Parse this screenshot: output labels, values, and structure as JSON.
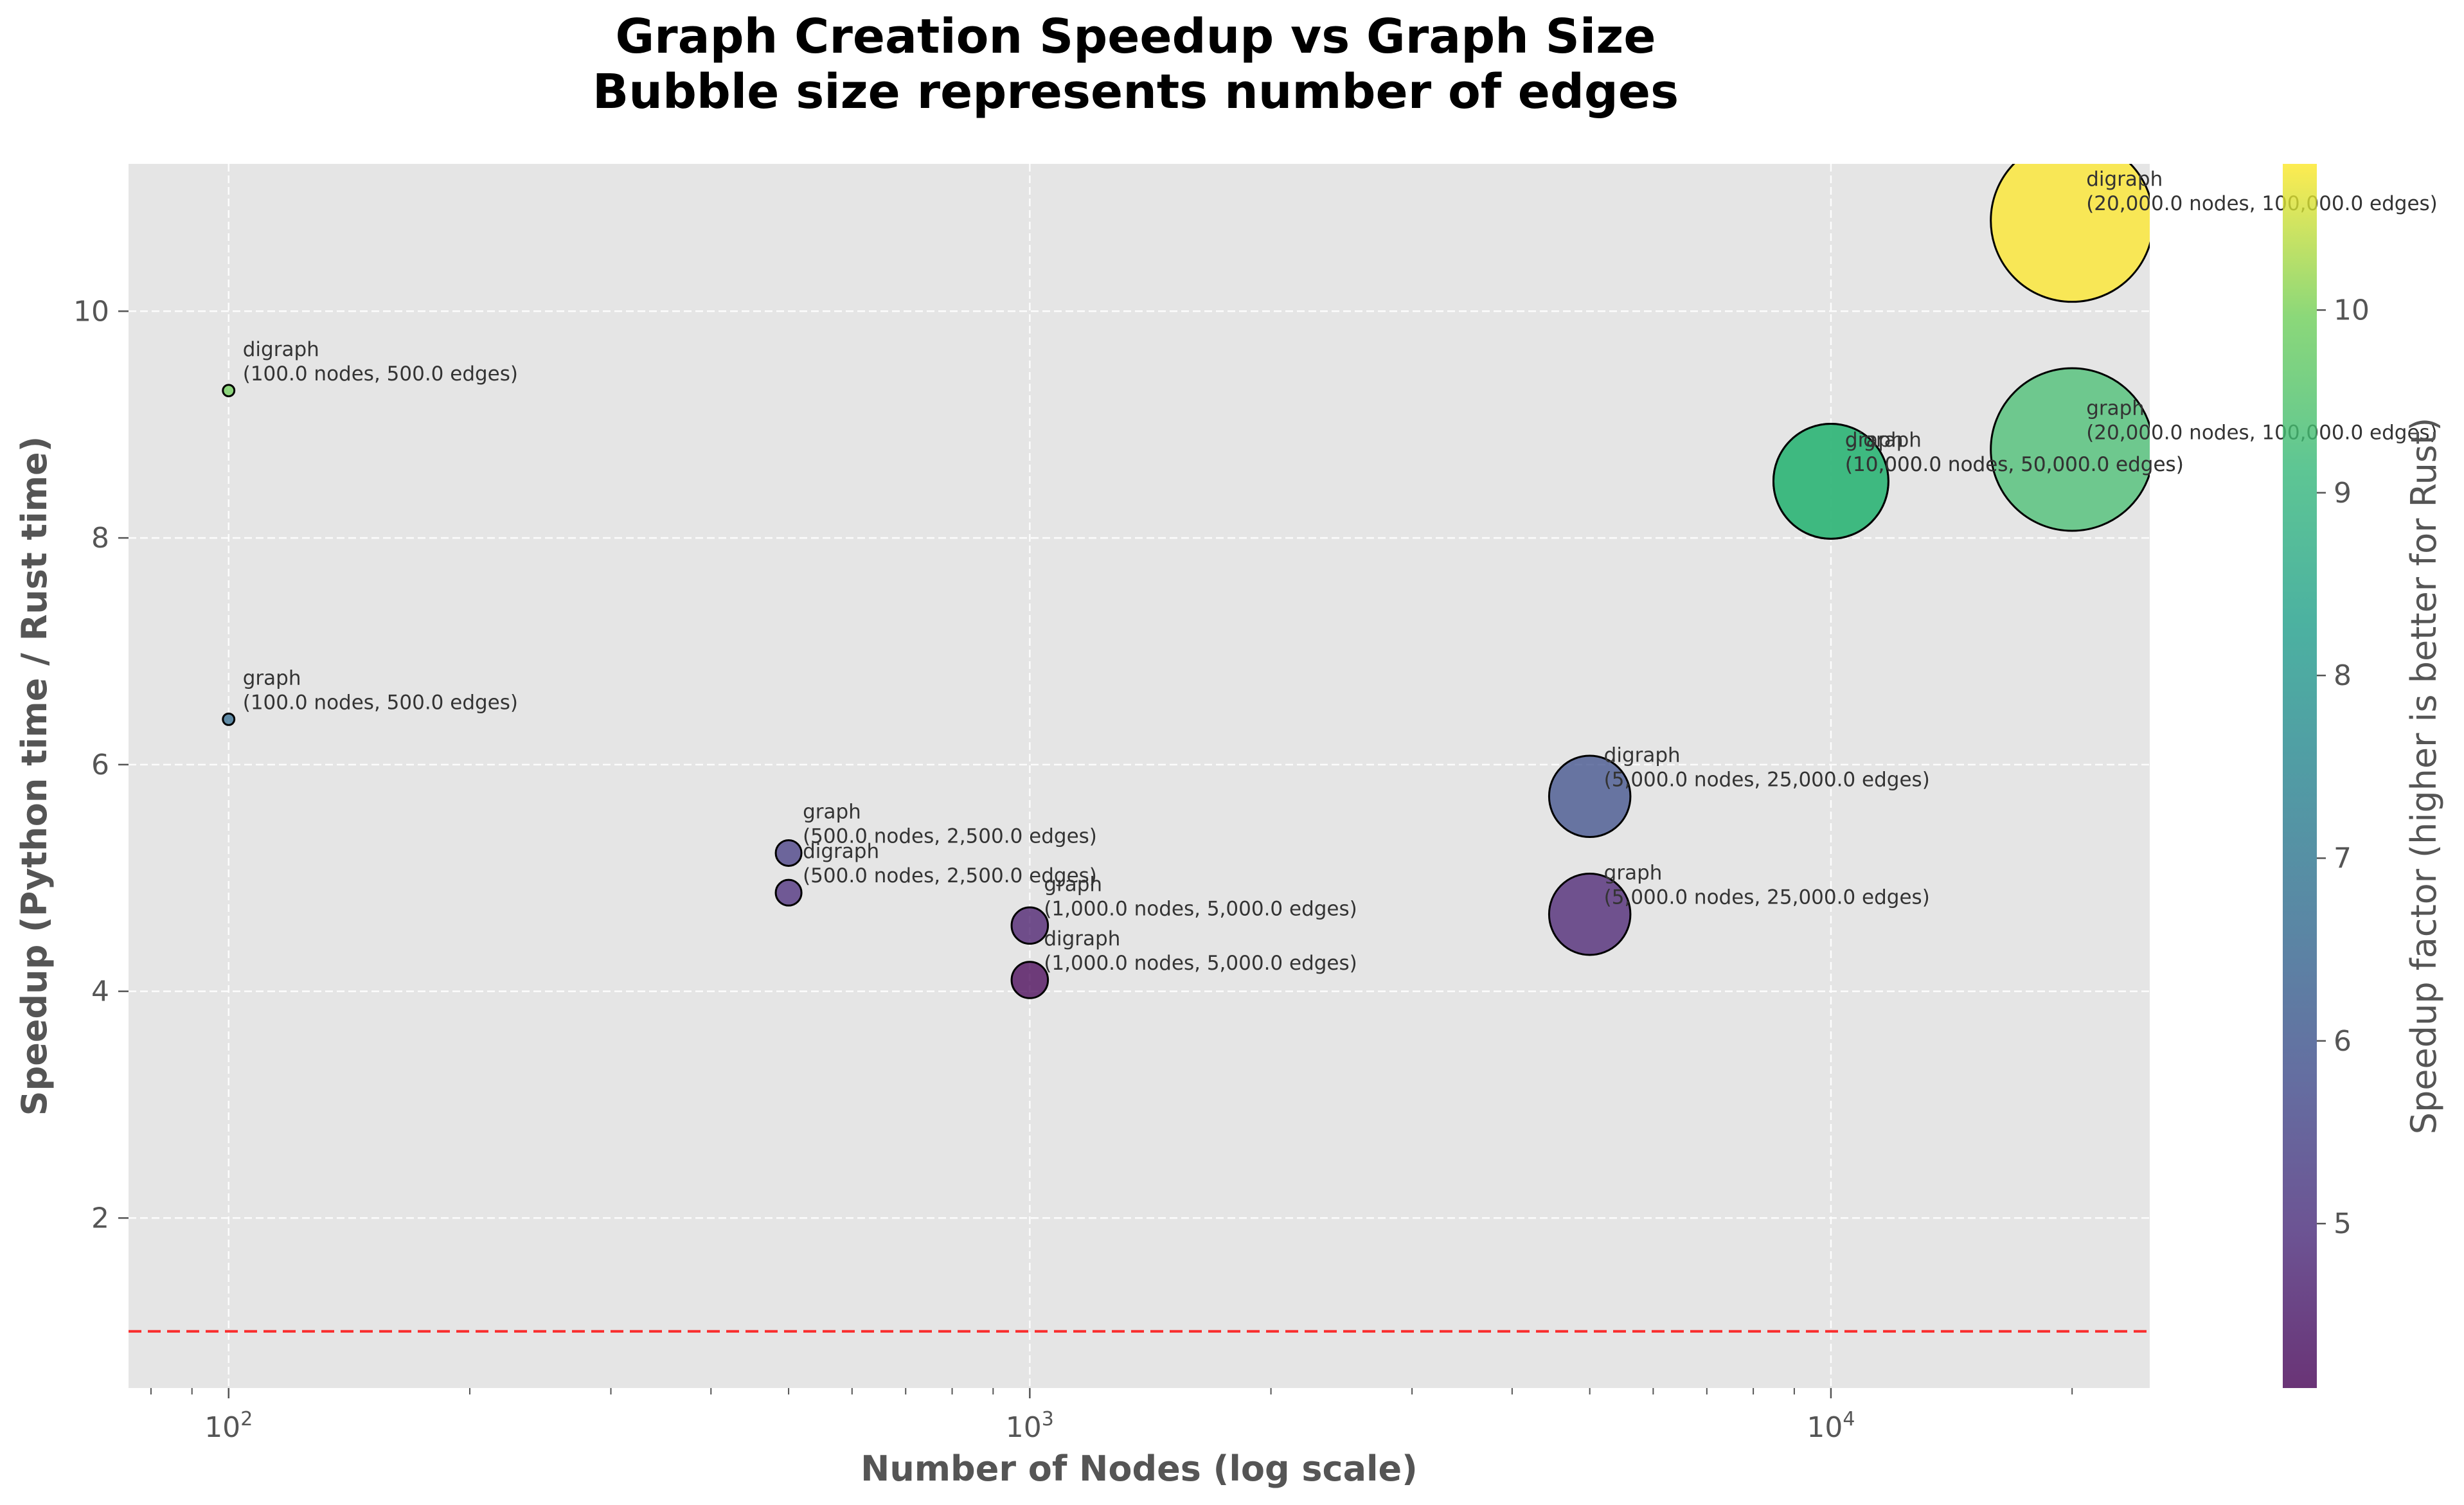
{
  "chart_data": {
    "type": "scatter",
    "title": "Graph Creation Speedup vs Graph Size",
    "subtitle": "Bubble size represents number of edges",
    "xlabel": "Number of Nodes (log scale)",
    "ylabel": "Speedup (Python time / Rust time)",
    "x_scale": "log",
    "xlim": [
      75,
      25000
    ],
    "ylim": [
      0.5,
      11.3
    ],
    "x_ticks": [
      {
        "value": 100,
        "base": "10",
        "exp": "2"
      },
      {
        "value": 1000,
        "base": "10",
        "exp": "3"
      },
      {
        "value": 10000,
        "base": "10",
        "exp": "4"
      }
    ],
    "y_ticks": [
      2,
      4,
      6,
      8,
      10
    ],
    "grid": true,
    "reference_line": {
      "y": 1.0,
      "color": "#ff0000",
      "style": "dashed"
    },
    "colorbar": {
      "label": "Speedup factor (higher is better for Rust)",
      "colormap": "viridis",
      "range": [
        4.1,
        10.8
      ],
      "ticks": [
        5,
        6,
        7,
        8,
        9,
        10
      ]
    },
    "points": [
      {
        "type": "digraph",
        "nodes": 100,
        "edges": 500,
        "speedup": 9.3,
        "label_line1": "digraph",
        "label_line2": "(100.0 nodes, 500.0 edges)"
      },
      {
        "type": "graph",
        "nodes": 100,
        "edges": 500,
        "speedup": 6.4,
        "label_line1": "graph",
        "label_line2": "(100.0 nodes, 500.0 edges)"
      },
      {
        "type": "graph",
        "nodes": 500,
        "edges": 2500,
        "speedup": 5.22,
        "label_line1": "graph",
        "label_line2": "(500.0 nodes, 2,500.0 edges)"
      },
      {
        "type": "digraph",
        "nodes": 500,
        "edges": 2500,
        "speedup": 4.87,
        "label_line1": "digraph",
        "label_line2": "(500.0 nodes, 2,500.0 edges)"
      },
      {
        "type": "graph",
        "nodes": 1000,
        "edges": 5000,
        "speedup": 4.58,
        "label_line1": "graph",
        "label_line2": "(1,000.0 nodes, 5,000.0 edges)"
      },
      {
        "type": "digraph",
        "nodes": 1000,
        "edges": 5000,
        "speedup": 4.1,
        "label_line1": "digraph",
        "label_line2": "(1,000.0 nodes, 5,000.0 edges)"
      },
      {
        "type": "digraph",
        "nodes": 5000,
        "edges": 25000,
        "speedup": 5.72,
        "label_line1": "digraph",
        "label_line2": "(5,000.0 nodes, 25,000.0 edges)"
      },
      {
        "type": "graph",
        "nodes": 5000,
        "edges": 25000,
        "speedup": 4.68,
        "label_line1": "graph",
        "label_line2": "(5,000.0 nodes, 25,000.0 edges)"
      },
      {
        "type": "graph",
        "nodes": 10000,
        "edges": 50000,
        "speedup": 8.5,
        "label_line1": "graph",
        "label_line2": "(10,000.0 nodes, 50,000.0 edges)"
      },
      {
        "type": "digraph",
        "nodes": 10000,
        "edges": 50000,
        "speedup": 8.5,
        "label_line1": "digraph",
        "label_line2": "(10,000.0 nodes, 50,000.0 edges)"
      },
      {
        "type": "digraph",
        "nodes": 20000,
        "edges": 100000,
        "speedup": 10.8,
        "label_line1": "digraph",
        "label_line2": "(20,000.0 nodes, 100,000.0 edges)"
      },
      {
        "type": "graph",
        "nodes": 20000,
        "edges": 100000,
        "speedup": 8.78,
        "label_line1": "graph",
        "label_line2": "(20,000.0 nodes, 100,000.0 edges)"
      }
    ]
  }
}
